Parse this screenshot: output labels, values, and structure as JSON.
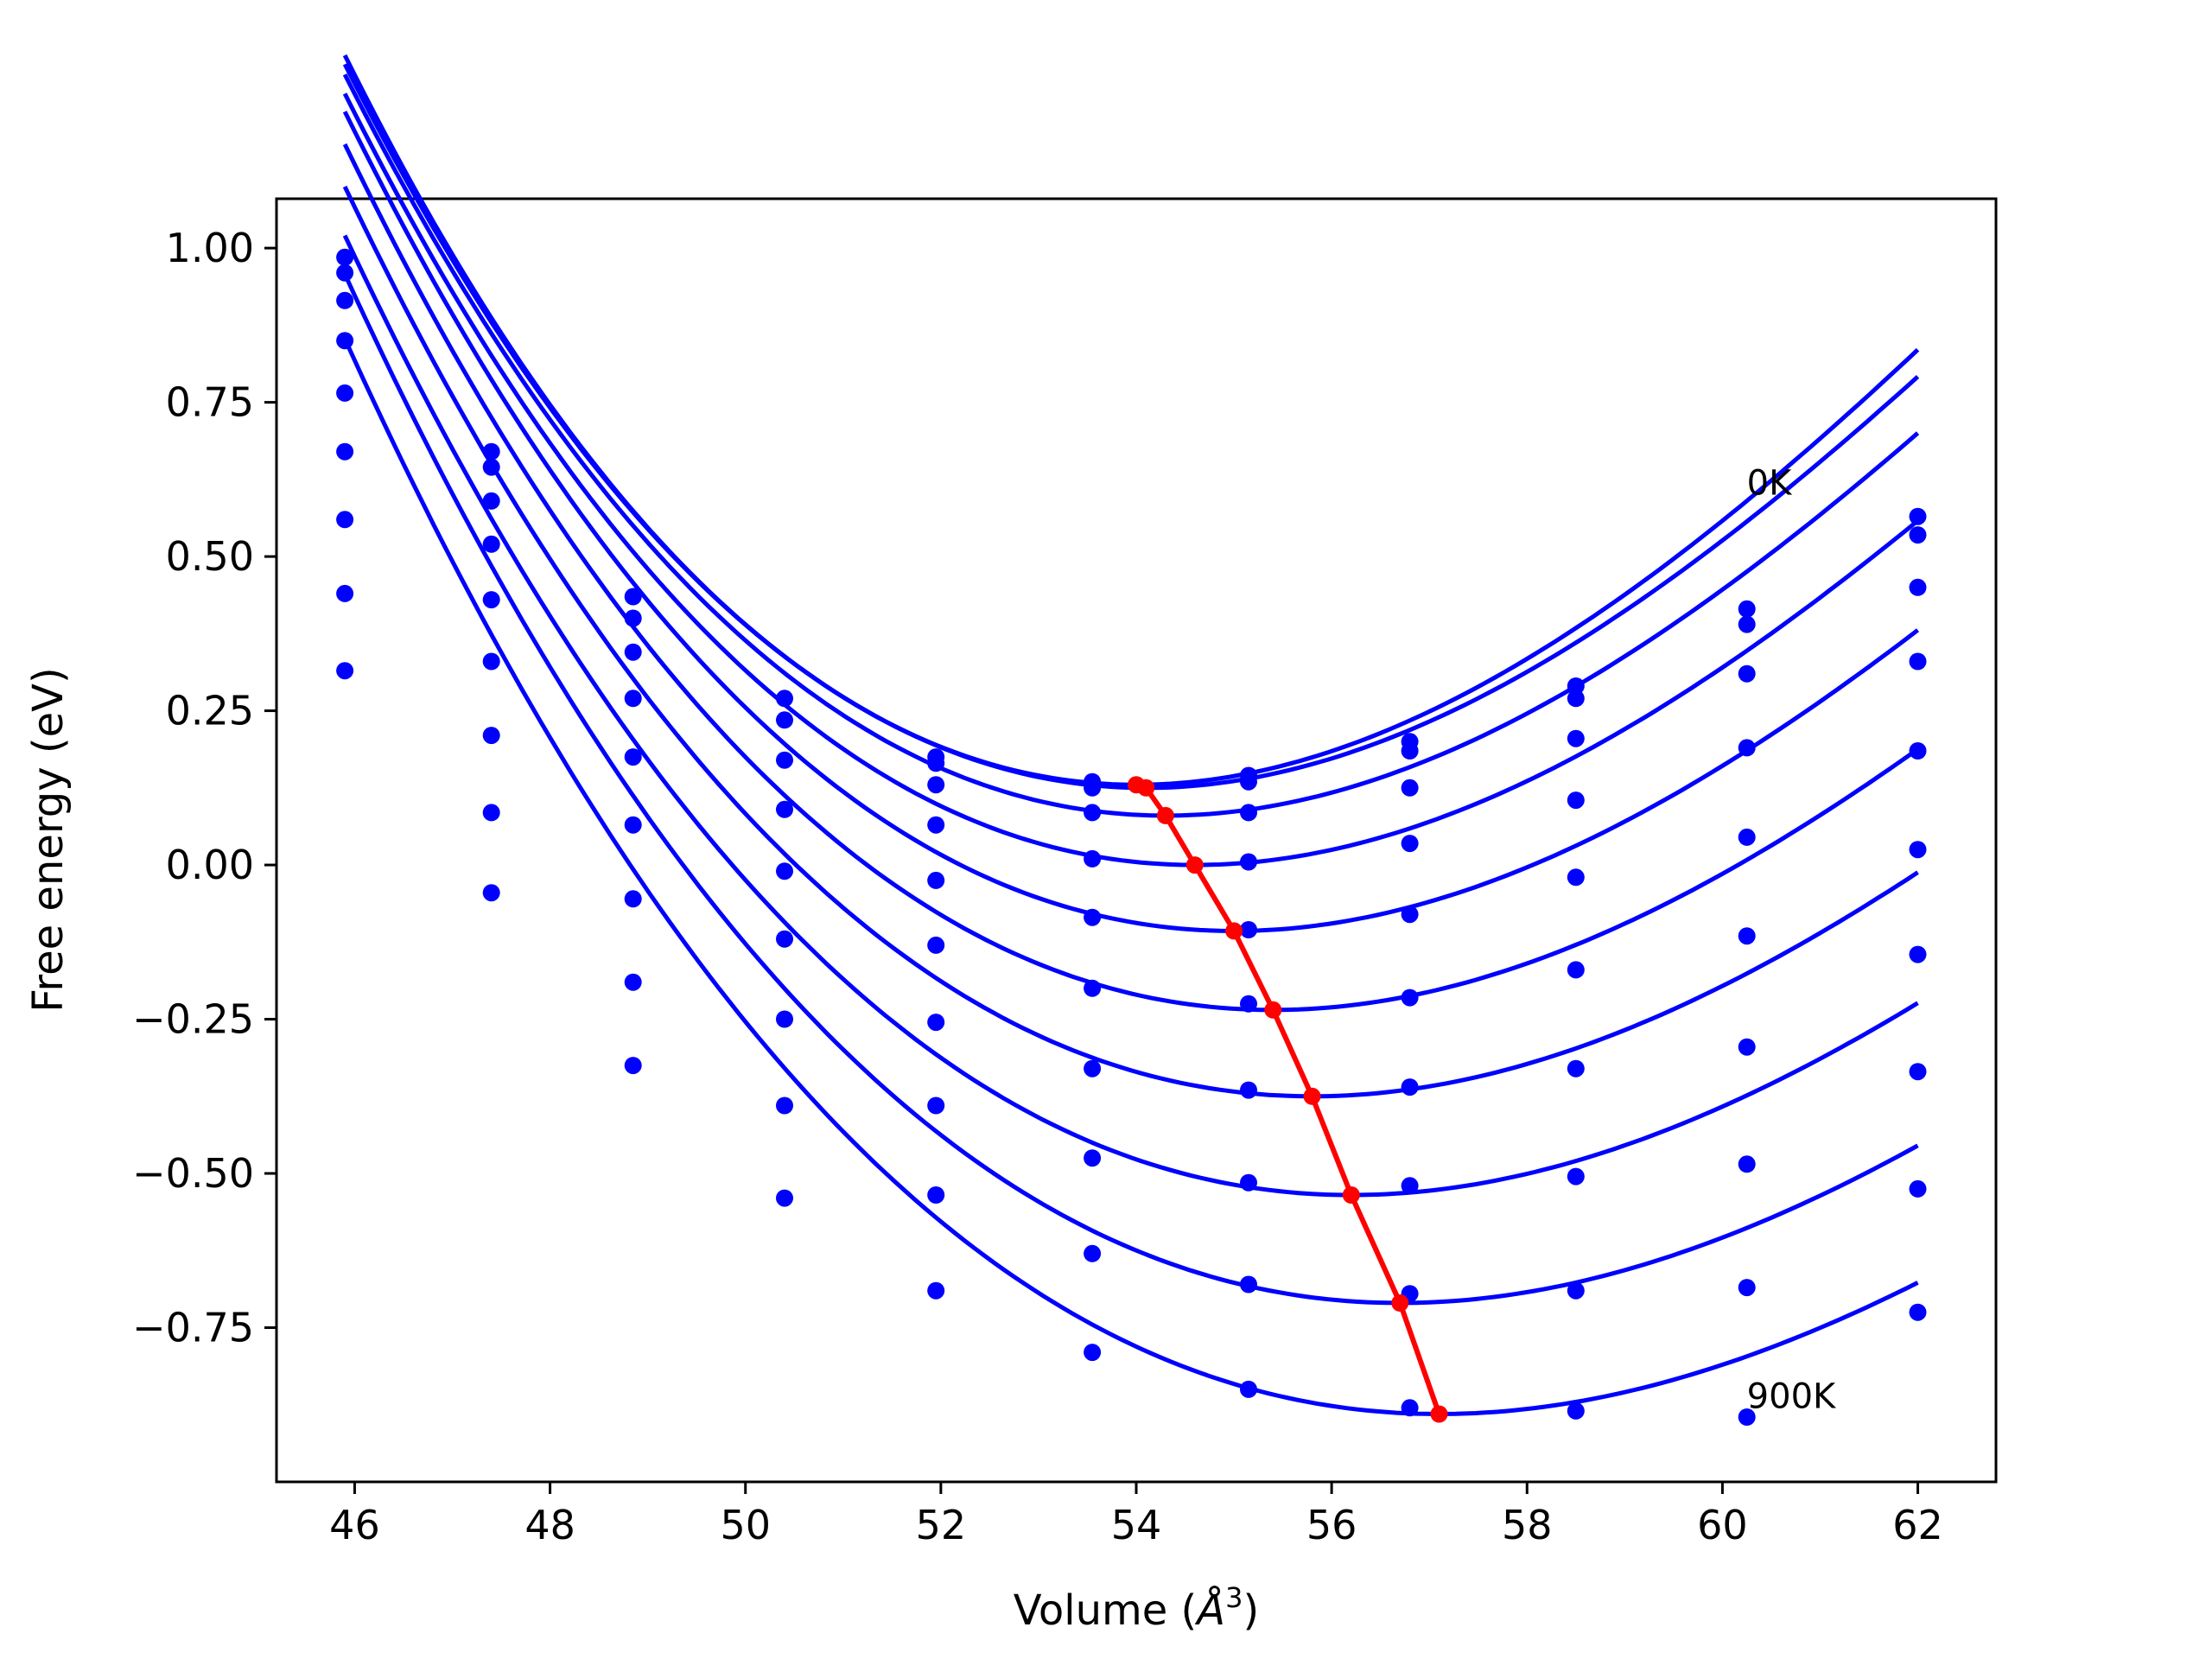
{
  "chart_data": {
    "type": "scatter",
    "title": "",
    "xlabel": "Volume (Å³)",
    "xlabel_text": "Volume (",
    "xlabel_unit_base": "Å",
    "xlabel_unit_sup": "3",
    "xlabel_close": ")",
    "ylabel": "Free energy (eV)",
    "xlim": [
      45.2,
      62.8
    ],
    "ylim": [
      -1.0,
      1.08
    ],
    "xticks": [
      46,
      48,
      50,
      52,
      54,
      56,
      58,
      60,
      62
    ],
    "xtick_labels": [
      "46",
      "48",
      "50",
      "52",
      "54",
      "56",
      "58",
      "60",
      "62"
    ],
    "yticks": [
      1.0,
      0.75,
      0.5,
      0.25,
      0.0,
      -0.25,
      -0.5,
      -0.75
    ],
    "ytick_labels": [
      "1.00",
      "0.75",
      "0.50",
      "0.25",
      "0.00",
      "−0.25",
      "−0.50",
      "−0.75"
    ],
    "grid": false,
    "legend": "none",
    "annotations": [
      {
        "text": "0K",
        "x": 60.25,
        "y": 0.6
      },
      {
        "text": "900K",
        "x": 60.25,
        "y": -0.88
      }
    ],
    "colors": {
      "isotherms": "#0000ff",
      "minimum_path": "#ff0000",
      "axes": "#000000"
    },
    "x": [
      45.9,
      47.4,
      48.85,
      50.4,
      51.95,
      53.55,
      55.15,
      56.8,
      58.5,
      60.25,
      62.0
    ],
    "series": [
      {
        "values": [
          0.985,
          0.67,
          0.435,
          0.27,
          0.175,
          0.135,
          0.145,
          0.2,
          0.29,
          0.415,
          0.565
        ]
      },
      {
        "values": [
          0.96,
          0.645,
          0.4,
          0.235,
          0.165,
          0.125,
          0.135,
          0.185,
          0.27,
          0.39,
          0.535
        ]
      },
      {
        "values": [
          0.915,
          0.59,
          0.345,
          0.17,
          0.13,
          0.085,
          0.085,
          0.125,
          0.205,
          0.31,
          0.45
        ]
      },
      {
        "values": [
          0.85,
          0.52,
          0.27,
          0.09,
          0.065,
          0.01,
          0.005,
          0.035,
          0.105,
          0.19,
          0.33
        ]
      },
      {
        "values": [
          0.765,
          0.43,
          0.175,
          -0.01,
          -0.025,
          -0.085,
          -0.105,
          -0.08,
          -0.02,
          0.045,
          0.185
        ]
      },
      {
        "values": [
          0.67,
          0.33,
          0.065,
          -0.12,
          -0.13,
          -0.2,
          -0.225,
          -0.215,
          -0.17,
          -0.115,
          0.025
        ]
      },
      {
        "values": [
          0.56,
          0.21,
          -0.055,
          -0.25,
          -0.255,
          -0.33,
          -0.365,
          -0.36,
          -0.33,
          -0.295,
          -0.145
        ]
      },
      {
        "values": [
          0.44,
          0.085,
          -0.19,
          -0.39,
          -0.39,
          -0.475,
          -0.515,
          -0.52,
          -0.505,
          -0.485,
          -0.335
        ]
      },
      {
        "values": [
          0.315,
          -0.045,
          -0.325,
          -0.54,
          -0.535,
          -0.63,
          -0.68,
          -0.695,
          -0.69,
          -0.685,
          -0.525
        ]
      },
      {
        "values": [
          null,
          null,
          null,
          null,
          -0.69,
          -0.79,
          -0.85,
          -0.88,
          -0.885,
          -0.895,
          -0.725
        ]
      }
    ],
    "fit_curves": [
      {
        "vmin": 54.0,
        "emin": 0.13,
        "a": 0.0145
      },
      {
        "vmin": 54.1,
        "emin": 0.125,
        "a": 0.014
      },
      {
        "vmin": 54.3,
        "emin": 0.08,
        "a": 0.0136
      },
      {
        "vmin": 54.6,
        "emin": 0.0,
        "a": 0.0131
      },
      {
        "vmin": 55.0,
        "emin": -0.107,
        "a": 0.0126
      },
      {
        "vmin": 55.4,
        "emin": -0.235,
        "a": 0.0121
      },
      {
        "vmin": 55.8,
        "emin": -0.375,
        "a": 0.0116
      },
      {
        "vmin": 56.2,
        "emin": -0.535,
        "a": 0.0112
      },
      {
        "vmin": 56.7,
        "emin": -0.71,
        "a": 0.0108
      },
      {
        "vmin": 57.1,
        "emin": -0.89,
        "a": 0.0104
      }
    ],
    "minimum_path": {
      "x": [
        54.0,
        54.1,
        54.3,
        54.6,
        55.0,
        55.4,
        55.8,
        56.2,
        56.7,
        57.1
      ],
      "y": [
        0.13,
        0.125,
        0.08,
        0.0,
        -0.107,
        -0.235,
        -0.375,
        -0.535,
        -0.71,
        -0.89
      ]
    }
  }
}
